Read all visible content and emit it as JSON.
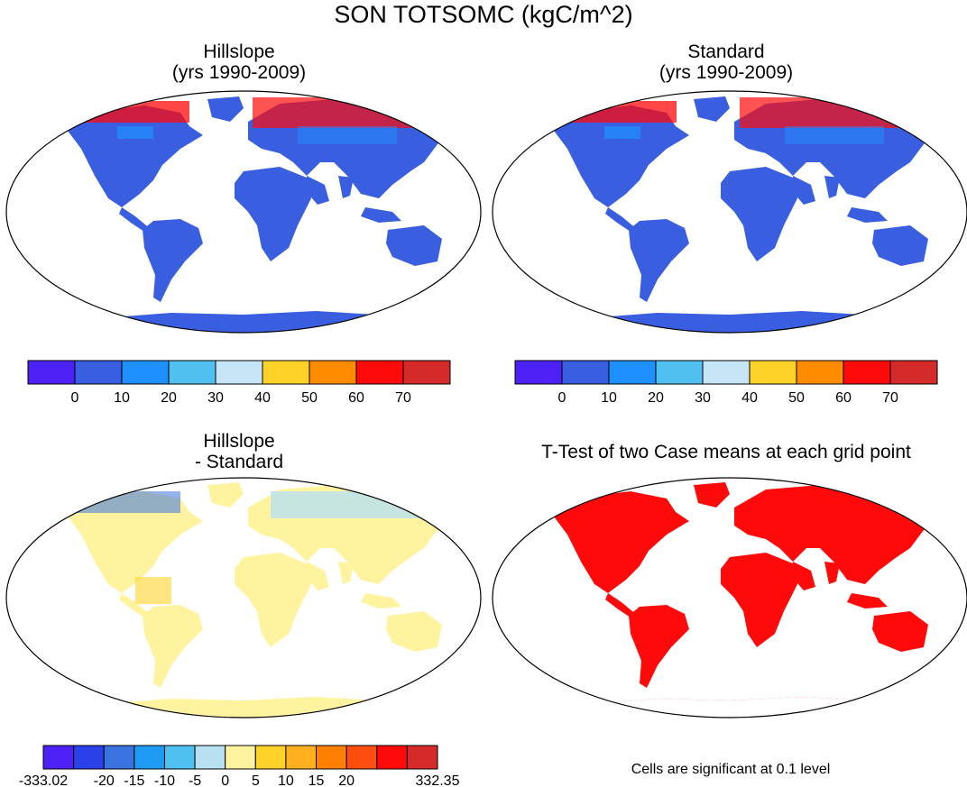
{
  "main_title": "SON TOTSOMC (kgC/m^2)",
  "panels": {
    "hillslope": {
      "title_line1": "Hillslope",
      "title_line2": "(yrs 1990-2009)"
    },
    "standard": {
      "title_line1": "Standard",
      "title_line2": "(yrs 1990-2009)"
    },
    "difference": {
      "title_line1": "Hillslope",
      "title_line2": "- Standard"
    },
    "ttest": {
      "title": "T-Test of two Case means at each grid point",
      "note": "Cells are significant at 0.1 level"
    }
  },
  "colorbar_top": {
    "colors": [
      "#4d20f5",
      "#3a5ee0",
      "#1e90ff",
      "#4fc0f0",
      "#c6e6f8",
      "#ffd229",
      "#ff8c00",
      "#ff0a0a",
      "#d42a2a"
    ],
    "labels": [
      "0",
      "10",
      "20",
      "30",
      "40",
      "50",
      "60",
      "70"
    ]
  },
  "colorbar_diff": {
    "colors": [
      "#4d20f5",
      "#2a40e8",
      "#3a72e0",
      "#1e9cf5",
      "#4fc0f0",
      "#b8e0f0",
      "#fff3a0",
      "#ffd229",
      "#ffb020",
      "#ff8000",
      "#ff4d10",
      "#ff0a0a",
      "#d42a2a"
    ],
    "labels": [
      "-333.02",
      "-20",
      "-15",
      "-10",
      "-5",
      "0",
      "5",
      "10",
      "15",
      "20",
      "332.35"
    ]
  },
  "map_colors": {
    "ocean": "#ffffff",
    "land_abs": "#3a5ee0",
    "land_abs_light": "#1e90ff",
    "high_lat": "#ff0a0a",
    "diff_land": "#fff3a0",
    "diff_light": "#b8e0f0",
    "ttest_land": "#ff0a0a"
  }
}
